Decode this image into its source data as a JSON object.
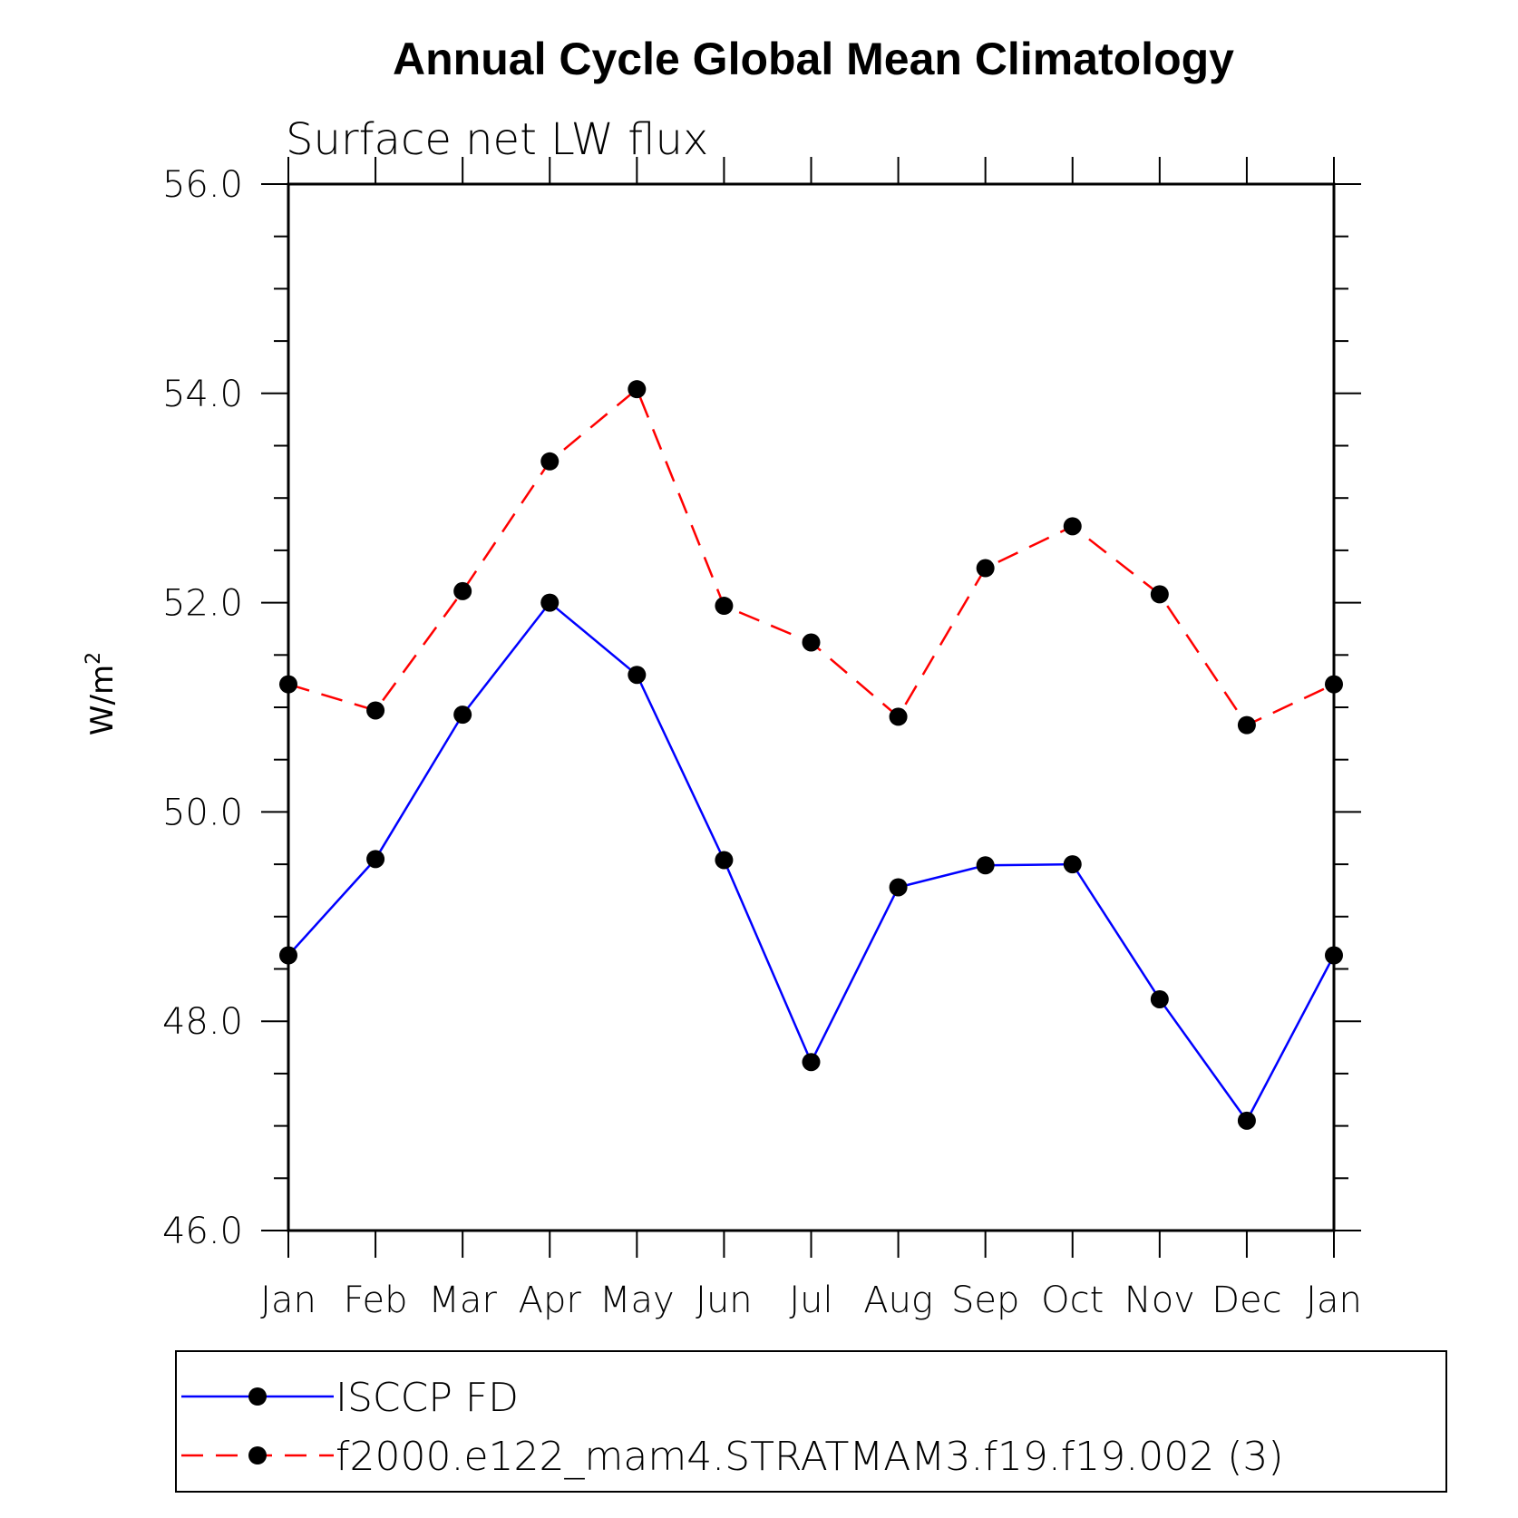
{
  "chart_data": {
    "type": "line",
    "title": "Annual Cycle Global Mean Climatology",
    "subtitle": "Surface net LW flux",
    "ylabel": "W/m",
    "ylabel_superscript": "2",
    "xlabel": "",
    "ylim": [
      46.0,
      56.0
    ],
    "ytick_labels": [
      "46.0",
      "48.0",
      "50.0",
      "52.0",
      "54.0",
      "56.0"
    ],
    "categories": [
      "Jan",
      "Feb",
      "Mar",
      "Apr",
      "May",
      "Jun",
      "Jul",
      "Aug",
      "Sep",
      "Oct",
      "Nov",
      "Dec",
      "Jan"
    ],
    "series": [
      {
        "name": "ISCCP FD",
        "color": "#0000ff",
        "dash": "solid",
        "values": [
          48.63,
          49.55,
          50.93,
          52.0,
          51.31,
          49.54,
          47.61,
          49.28,
          49.49,
          49.5,
          48.21,
          47.05,
          48.63
        ]
      },
      {
        "name": "f2000.e122_mam4.STRATMAM3.f19.f19.002 (3)",
        "color": "#ff0000",
        "dash": "dashed",
        "values": [
          51.22,
          50.97,
          52.11,
          53.35,
          54.04,
          51.97,
          51.62,
          50.91,
          52.33,
          52.73,
          52.08,
          50.83,
          51.22
        ]
      }
    ],
    "legend_position": "bottom",
    "marker_color": "#000000"
  }
}
